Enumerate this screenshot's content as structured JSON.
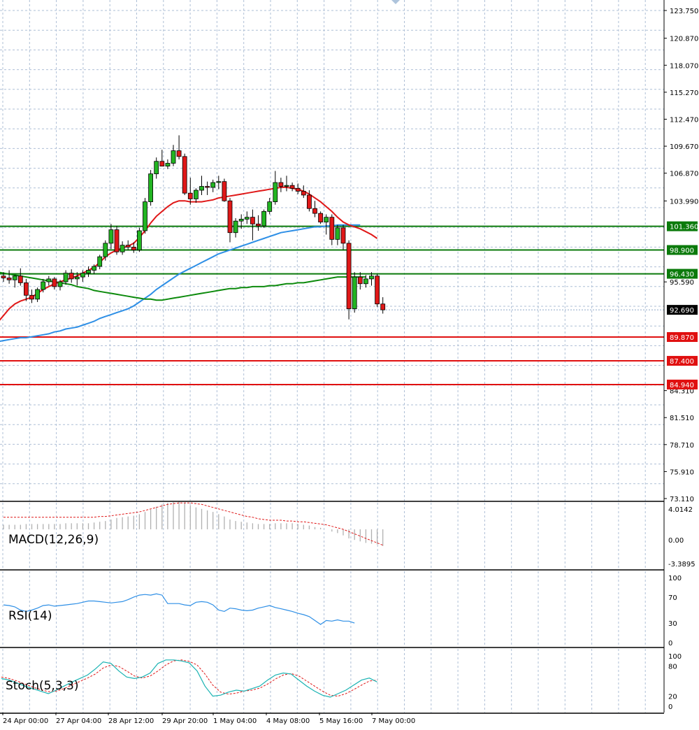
{
  "chart_data": [
    {
      "type": "candlestick",
      "panel": "price",
      "x_labels": [
        "24 Apr 00:00",
        "27 Apr 04:00",
        "28 Apr 12:00",
        "29 Apr 20:00",
        "1 May 04:00",
        "4 May 08:00",
        "5 May 16:00",
        "7 May 00:00"
      ],
      "y_ticks": [
        "123.750",
        "120.870",
        "118.070",
        "115.270",
        "112.470",
        "109.670",
        "106.870",
        "103.990",
        "101.360",
        "98.900",
        "96.430",
        "95.590",
        "92.690",
        "89.870",
        "87.400",
        "84.940",
        "84.310",
        "81.510",
        "78.710",
        "75.910",
        "73.110"
      ],
      "ylim": [
        73.11,
        123.75
      ],
      "current_price": "92.690",
      "current_price_value": 92.69,
      "candles": [
        [
          96.2,
          96.6,
          95.6,
          96.0
        ],
        [
          96.0,
          96.8,
          95.4,
          95.8
        ],
        [
          95.8,
          96.3,
          95.0,
          96.2
        ],
        [
          96.2,
          97.0,
          95.2,
          95.5
        ],
        [
          95.5,
          95.9,
          93.6,
          94.2
        ],
        [
          94.2,
          94.8,
          93.4,
          93.8
        ],
        [
          93.8,
          95.0,
          93.5,
          94.8
        ],
        [
          94.8,
          95.9,
          94.5,
          95.6
        ],
        [
          95.6,
          96.2,
          95.2,
          95.9
        ],
        [
          95.9,
          96.1,
          94.8,
          95.1
        ],
        [
          95.1,
          95.8,
          94.7,
          95.6
        ],
        [
          95.6,
          96.8,
          95.3,
          96.5
        ],
        [
          96.5,
          96.9,
          95.5,
          95.9
        ],
        [
          95.9,
          96.6,
          95.2,
          96.1
        ],
        [
          96.1,
          96.8,
          95.6,
          96.5
        ],
        [
          96.5,
          97.2,
          96.1,
          96.8
        ],
        [
          96.8,
          97.4,
          96.4,
          97.2
        ],
        [
          97.2,
          98.4,
          96.9,
          98.2
        ],
        [
          98.2,
          99.9,
          97.8,
          99.6
        ],
        [
          99.6,
          101.6,
          99.0,
          101.0
        ],
        [
          101.0,
          101.4,
          98.4,
          98.7
        ],
        [
          98.7,
          99.8,
          98.4,
          99.4
        ],
        [
          99.4,
          99.9,
          98.9,
          99.2
        ],
        [
          99.2,
          99.7,
          98.6,
          98.9
        ],
        [
          98.9,
          101.2,
          98.7,
          100.9
        ],
        [
          100.9,
          104.3,
          100.6,
          103.9
        ],
        [
          103.9,
          107.2,
          103.5,
          106.8
        ],
        [
          106.8,
          108.5,
          106.3,
          108.1
        ],
        [
          108.1,
          109.3,
          107.6,
          107.6
        ],
        [
          107.6,
          108.3,
          107.3,
          107.9
        ],
        [
          107.9,
          109.8,
          107.6,
          109.2
        ],
        [
          109.2,
          110.8,
          108.3,
          108.6
        ],
        [
          108.6,
          108.9,
          104.6,
          104.8
        ],
        [
          104.8,
          106.4,
          103.6,
          104.2
        ],
        [
          104.2,
          105.3,
          103.8,
          105.1
        ],
        [
          105.1,
          106.6,
          104.6,
          105.5
        ],
        [
          105.5,
          106.0,
          104.6,
          105.4
        ],
        [
          105.4,
          106.2,
          104.9,
          105.9
        ],
        [
          105.9,
          106.6,
          105.2,
          106.0
        ],
        [
          106.0,
          106.3,
          103.9,
          104.0
        ],
        [
          104.0,
          104.3,
          99.7,
          100.7
        ],
        [
          100.7,
          102.2,
          100.2,
          101.9
        ],
        [
          101.9,
          102.6,
          101.1,
          102.1
        ],
        [
          102.1,
          102.9,
          101.6,
          102.3
        ],
        [
          102.3,
          103.1,
          99.9,
          101.6
        ],
        [
          101.6,
          102.5,
          100.9,
          101.4
        ],
        [
          101.4,
          103.1,
          101.2,
          102.9
        ],
        [
          102.9,
          104.3,
          102.6,
          103.9
        ],
        [
          103.9,
          107.1,
          103.6,
          105.9
        ],
        [
          105.9,
          106.4,
          104.9,
          105.5
        ],
        [
          105.5,
          106.6,
          105.0,
          105.6
        ],
        [
          105.6,
          105.9,
          105.0,
          105.3
        ],
        [
          105.3,
          105.8,
          104.7,
          105.0
        ],
        [
          105.0,
          105.6,
          104.3,
          104.6
        ],
        [
          104.6,
          105.1,
          102.9,
          103.2
        ],
        [
          103.2,
          104.0,
          102.3,
          102.7
        ],
        [
          102.7,
          102.9,
          101.6,
          101.8
        ],
        [
          101.8,
          102.6,
          100.5,
          102.3
        ],
        [
          102.3,
          102.6,
          99.4,
          100.0
        ],
        [
          100.0,
          101.5,
          99.4,
          101.2
        ],
        [
          101.2,
          101.5,
          98.9,
          99.6
        ],
        [
          99.6,
          99.9,
          91.7,
          92.8
        ],
        [
          92.8,
          96.6,
          92.4,
          96.1
        ],
        [
          96.1,
          96.6,
          94.8,
          95.4
        ],
        [
          95.4,
          96.3,
          95.0,
          95.9
        ],
        [
          95.9,
          96.6,
          95.2,
          96.2
        ],
        [
          96.2,
          96.4,
          93.0,
          93.3
        ],
        [
          93.3,
          94.0,
          92.3,
          92.69
        ]
      ],
      "ma_red": [
        91.4,
        92.1,
        92.8,
        93.3,
        93.6,
        93.8,
        94.0,
        94.4,
        94.8,
        95.1,
        95.4,
        95.6,
        95.8,
        96.0,
        96.2,
        96.5,
        96.8,
        97.1,
        97.6,
        98.2,
        98.6,
        98.9,
        99.1,
        99.3,
        99.6,
        100.2,
        100.9,
        101.7,
        102.4,
        102.9,
        103.4,
        103.8,
        104.0,
        104.0,
        103.9,
        103.9,
        103.9,
        104.0,
        104.1,
        104.3,
        104.4,
        104.5,
        104.6,
        104.7,
        104.8,
        104.9,
        105.0,
        105.1,
        105.2,
        105.3,
        105.4,
        105.4,
        105.3,
        105.2,
        105.0,
        104.7,
        104.3,
        103.9,
        103.4,
        102.9,
        102.3,
        101.8,
        101.5,
        101.3,
        101.1,
        100.8,
        100.5,
        100.1
      ],
      "ma_blue": [
        89.4,
        89.5,
        89.6,
        89.7,
        89.8,
        89.8,
        89.9,
        90.0,
        90.1,
        90.2,
        90.4,
        90.5,
        90.7,
        90.8,
        90.9,
        91.1,
        91.3,
        91.5,
        91.8,
        92.0,
        92.2,
        92.4,
        92.6,
        92.8,
        93.1,
        93.5,
        93.9,
        94.3,
        94.8,
        95.2,
        95.6,
        96.0,
        96.4,
        96.7,
        97.0,
        97.3,
        97.6,
        97.9,
        98.2,
        98.5,
        98.7,
        98.9,
        99.1,
        99.3,
        99.5,
        99.7,
        99.9,
        100.1,
        100.3,
        100.5,
        100.7,
        100.8,
        100.9,
        101.0,
        101.1,
        101.2,
        101.3,
        101.3,
        101.4,
        101.4,
        101.5,
        101.5,
        101.5,
        101.5,
        101.5
      ],
      "ma_green": [
        96.6,
        96.5,
        96.4,
        96.3,
        96.2,
        96.1,
        96.0,
        95.9,
        95.8,
        95.7,
        95.6,
        95.5,
        95.4,
        95.3,
        95.1,
        95.0,
        94.9,
        94.7,
        94.6,
        94.5,
        94.4,
        94.3,
        94.2,
        94.1,
        94.0,
        93.9,
        93.8,
        93.8,
        93.7,
        93.7,
        93.8,
        93.9,
        94.0,
        94.1,
        94.2,
        94.3,
        94.4,
        94.5,
        94.6,
        94.7,
        94.8,
        94.9,
        94.9,
        95.0,
        95.0,
        95.1,
        95.1,
        95.1,
        95.2,
        95.2,
        95.3,
        95.4,
        95.4,
        95.5,
        95.5,
        95.6,
        95.7,
        95.8,
        95.9,
        96.0,
        96.1,
        96.1,
        96.1,
        96.1,
        96.1,
        96.1
      ],
      "resistance_levels": [
        {
          "label": "101.360",
          "value": 101.36
        },
        {
          "label": "98.900",
          "value": 98.9
        },
        {
          "label": "96.430",
          "value": 96.43
        }
      ],
      "support_levels": [
        {
          "label": "89.870",
          "value": 89.87
        },
        {
          "label": "87.400",
          "value": 87.4
        },
        {
          "label": "84.940",
          "value": 84.94
        }
      ]
    },
    {
      "type": "bar",
      "panel": "macd",
      "title": "MACD(12,26,9)",
      "y_ticks": [
        "4.0142",
        "0.00",
        "-3.3895"
      ],
      "ylim": [
        -3.3895,
        4.0142
      ],
      "values": [
        0.6,
        0.6,
        0.6,
        0.6,
        0.7,
        0.7,
        0.7,
        0.7,
        0.7,
        0.7,
        0.7,
        0.8,
        0.8,
        0.8,
        0.8,
        0.8,
        0.9,
        1.0,
        1.1,
        1.3,
        1.5,
        1.6,
        1.7,
        1.8,
        2.0,
        2.3,
        2.6,
        3.0,
        3.3,
        3.5,
        3.6,
        3.7,
        3.5,
        3.2,
        2.9,
        2.7,
        2.5,
        2.3,
        2.0,
        1.7,
        1.3,
        1.1,
        1.0,
        0.9,
        0.8,
        0.7,
        0.7,
        0.7,
        0.8,
        0.8,
        0.8,
        0.8,
        0.7,
        0.6,
        0.5,
        0.3,
        0.2,
        0.0,
        -0.3,
        -0.5,
        -0.8,
        -1.2,
        -1.4,
        -1.6,
        -1.8,
        -1.9,
        -2.0,
        -2.2
      ],
      "signal": [
        1.6,
        1.6,
        1.6,
        1.6,
        1.6,
        1.6,
        1.6,
        1.6,
        1.6,
        1.6,
        1.6,
        1.6,
        1.6,
        1.6,
        1.6,
        1.6,
        1.6,
        1.7,
        1.7,
        1.8,
        1.9,
        2.0,
        2.1,
        2.2,
        2.3,
        2.5,
        2.7,
        2.9,
        3.1,
        3.3,
        3.4,
        3.5,
        3.5,
        3.5,
        3.4,
        3.3,
        3.1,
        2.9,
        2.7,
        2.5,
        2.3,
        2.1,
        1.9,
        1.7,
        1.6,
        1.4,
        1.3,
        1.2,
        1.2,
        1.2,
        1.1,
        1.1,
        1.0,
        1.0,
        0.9,
        0.8,
        0.7,
        0.6,
        0.4,
        0.2,
        0.0,
        -0.3,
        -0.6,
        -0.9,
        -1.2,
        -1.5,
        -1.8,
        -2.1
      ]
    },
    {
      "type": "line",
      "panel": "rsi",
      "title": "RSI(14)",
      "y_ticks": [
        "100",
        "70",
        "30",
        "0"
      ],
      "ylim": [
        0,
        100
      ],
      "values": [
        58,
        57,
        55,
        50,
        48,
        50,
        53,
        57,
        58,
        56,
        57,
        58,
        59,
        60,
        62,
        64,
        64,
        63,
        62,
        61,
        62,
        63,
        66,
        70,
        73,
        74,
        73,
        75,
        73,
        60,
        60,
        60,
        58,
        57,
        62,
        63,
        62,
        58,
        50,
        48,
        53,
        52,
        50,
        49,
        50,
        53,
        55,
        57,
        54,
        52,
        50,
        48,
        45,
        43,
        40,
        34,
        28,
        34,
        33,
        35,
        33,
        33,
        30
      ]
    },
    {
      "type": "line",
      "panel": "stoch",
      "title": "Stoch(5,3,3)",
      "y_ticks": [
        "100",
        "80",
        "20",
        "0"
      ],
      "ylim": [
        0,
        100
      ],
      "main": [
        55,
        52,
        46,
        40,
        35,
        30,
        25,
        32,
        40,
        48,
        55,
        62,
        74,
        88,
        85,
        70,
        58,
        55,
        58,
        66,
        85,
        92,
        92,
        90,
        86,
        70,
        40,
        20,
        22,
        28,
        32,
        30,
        35,
        40,
        52,
        62,
        66,
        64,
        52,
        40,
        30,
        22,
        18,
        25,
        32,
        42,
        52,
        56,
        48
      ],
      "signal": [
        58,
        55,
        50,
        44,
        38,
        33,
        29,
        30,
        35,
        42,
        49,
        56,
        64,
        76,
        82,
        79,
        70,
        60,
        56,
        60,
        70,
        82,
        90,
        92,
        89,
        82,
        64,
        42,
        28,
        24,
        26,
        30,
        32,
        36,
        44,
        54,
        62,
        65,
        60,
        50,
        40,
        30,
        22,
        20,
        25,
        33,
        42,
        50,
        52
      ]
    }
  ]
}
